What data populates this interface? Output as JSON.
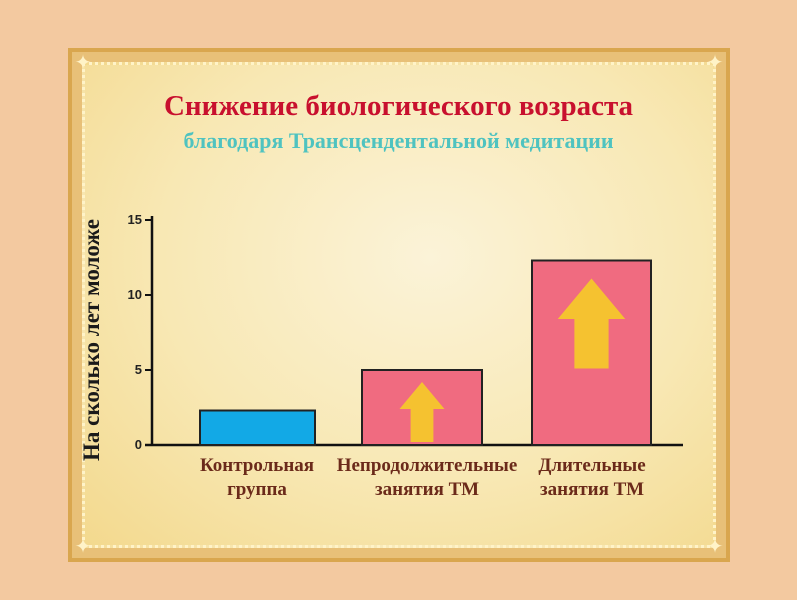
{
  "chart_data": {
    "type": "bar",
    "title": "Снижение биологического возраста",
    "subtitle": "благодаря Трансцендентальной медитации",
    "ylabel": "На сколько лет моложе",
    "xlabel": "",
    "ylim": [
      0,
      15
    ],
    "yticks": [
      "0",
      "5",
      "10",
      "15"
    ],
    "categories": [
      "Контрольная группа",
      "Непродолжительные занятия ТМ",
      "Длительные занятия ТМ"
    ],
    "category_lines": [
      [
        "Контрольная",
        "группа"
      ],
      [
        "Непродолжительные",
        "занятия ТМ"
      ],
      [
        "Длительные",
        "занятия ТМ"
      ]
    ],
    "values": [
      2.3,
      5.0,
      12.3
    ],
    "bar_colors": [
      "#12a9e6",
      "#f06b80",
      "#f06b80"
    ],
    "arrow_icons": [
      false,
      true,
      true
    ],
    "arrow_color": "#f5c230",
    "grid": false
  }
}
